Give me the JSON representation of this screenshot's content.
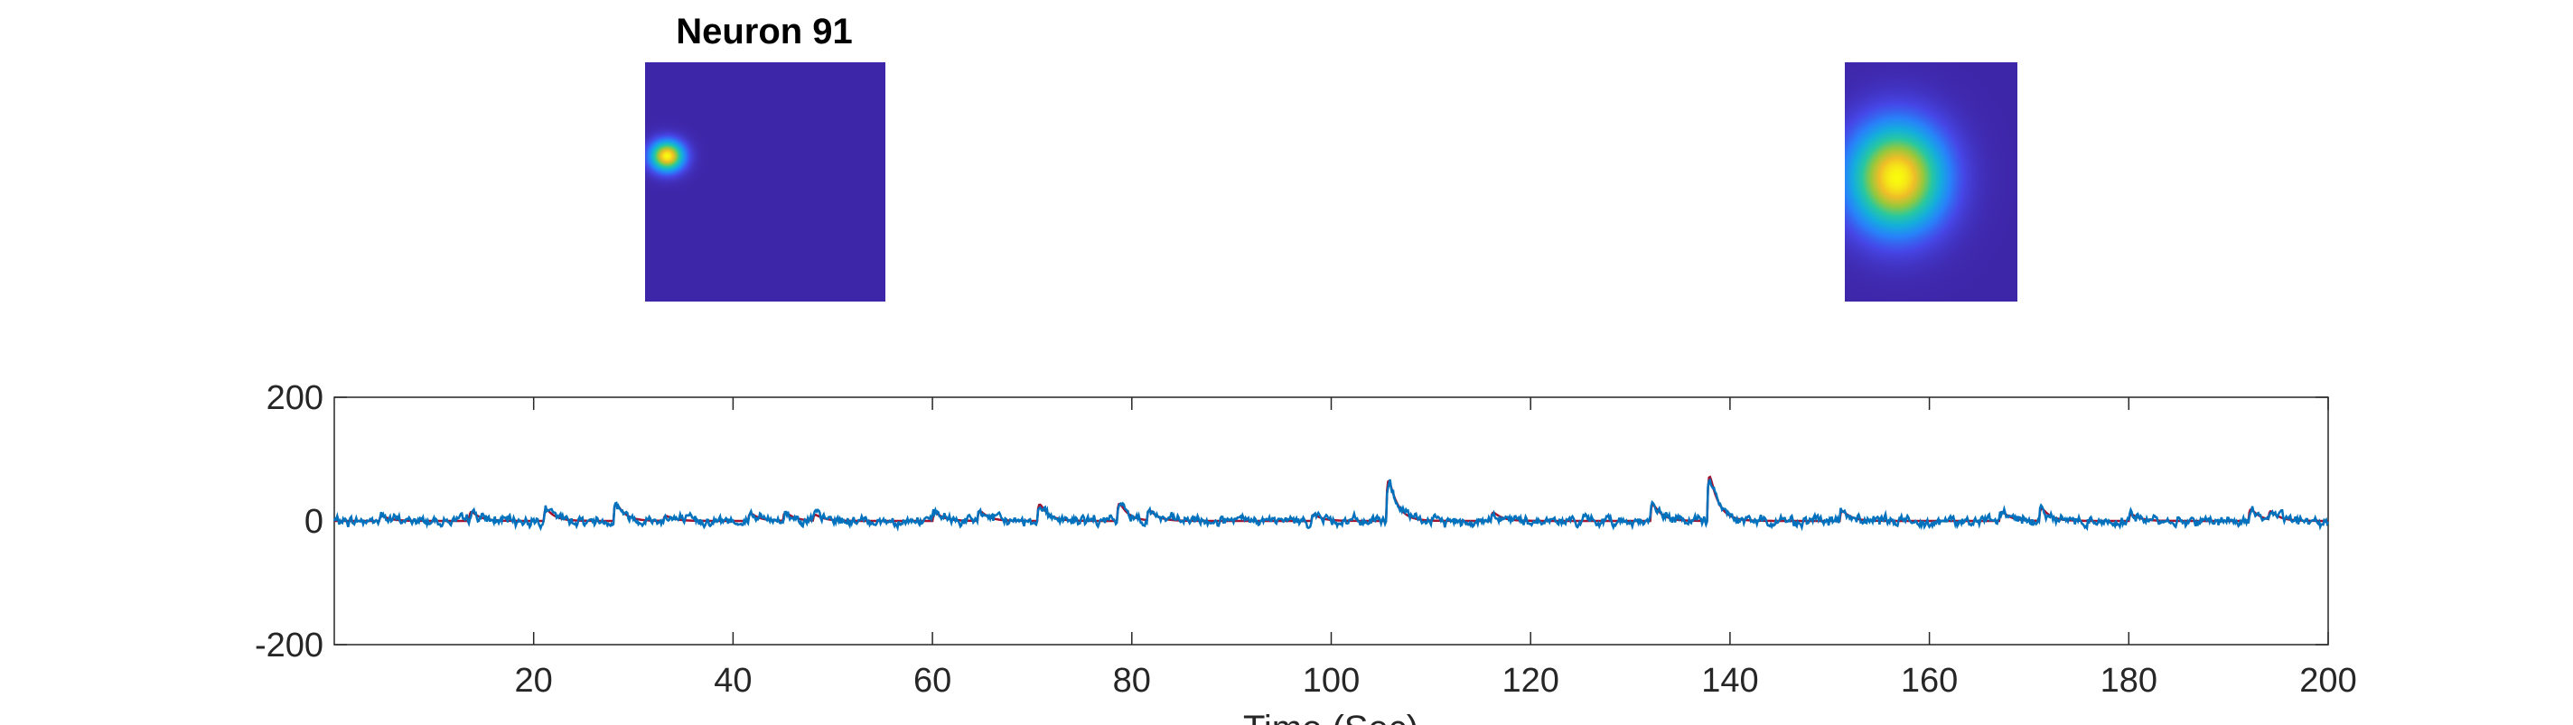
{
  "title": "Neuron 91",
  "colors": {
    "background": "#ffffff",
    "axis": "#262626",
    "heatmap_background": "#3e26a8",
    "trace_raw": "#0072bd",
    "trace_fit": "#a2142f"
  },
  "panels": [
    {
      "name": "spatial-footprint",
      "type": "heatmap",
      "colormap": "parula",
      "blobs": [
        {
          "cx": 0.09,
          "cy": 0.39,
          "sigma_x": 0.05,
          "sigma_y": 0.045,
          "peak": 1.0
        }
      ]
    },
    {
      "name": "spatial-footprint-zoom",
      "type": "heatmap",
      "colormap": "parula",
      "blobs": [
        {
          "cx": 0.3,
          "cy": 0.48,
          "sigma_x": 0.2,
          "sigma_y": 0.16,
          "peak": 1.0
        }
      ]
    }
  ],
  "chart_data": {
    "type": "line",
    "title": "",
    "xlabel": "Time (Sec)",
    "ylabel": "",
    "xlim": [
      0,
      200
    ],
    "ylim": [
      -200,
      200
    ],
    "xticks": [
      20,
      40,
      60,
      80,
      100,
      120,
      140,
      160,
      180,
      200
    ],
    "yticks": [
      -200,
      0,
      200
    ],
    "grid": false,
    "legend": "none",
    "baseline_noise_amplitude": 6,
    "series": [
      {
        "color": "#0072bd",
        "events": [
          {
            "t": 4.5,
            "amp": 12
          },
          {
            "t": 13.5,
            "amp": 22
          },
          {
            "t": 21,
            "amp": 28
          },
          {
            "t": 28,
            "amp": 42
          },
          {
            "t": 33,
            "amp": 12
          },
          {
            "t": 41.5,
            "amp": 18
          },
          {
            "t": 45,
            "amp": 20
          },
          {
            "t": 48,
            "amp": 14
          },
          {
            "t": 60,
            "amp": 20
          },
          {
            "t": 64.5,
            "amp": 24
          },
          {
            "t": 70.5,
            "amp": 40
          },
          {
            "t": 78.5,
            "amp": 42
          },
          {
            "t": 81.5,
            "amp": 24
          },
          {
            "t": 98,
            "amp": 15
          },
          {
            "t": 105.5,
            "amp": 98
          },
          {
            "t": 116,
            "amp": 20
          },
          {
            "t": 132,
            "amp": 40
          },
          {
            "t": 137.7,
            "amp": 108
          },
          {
            "t": 151,
            "amp": 24
          },
          {
            "t": 167,
            "amp": 22
          },
          {
            "t": 171,
            "amp": 30
          },
          {
            "t": 180,
            "amp": 16
          },
          {
            "t": 192,
            "amp": 28
          },
          {
            "t": 194,
            "amp": 20
          }
        ]
      }
    ]
  }
}
